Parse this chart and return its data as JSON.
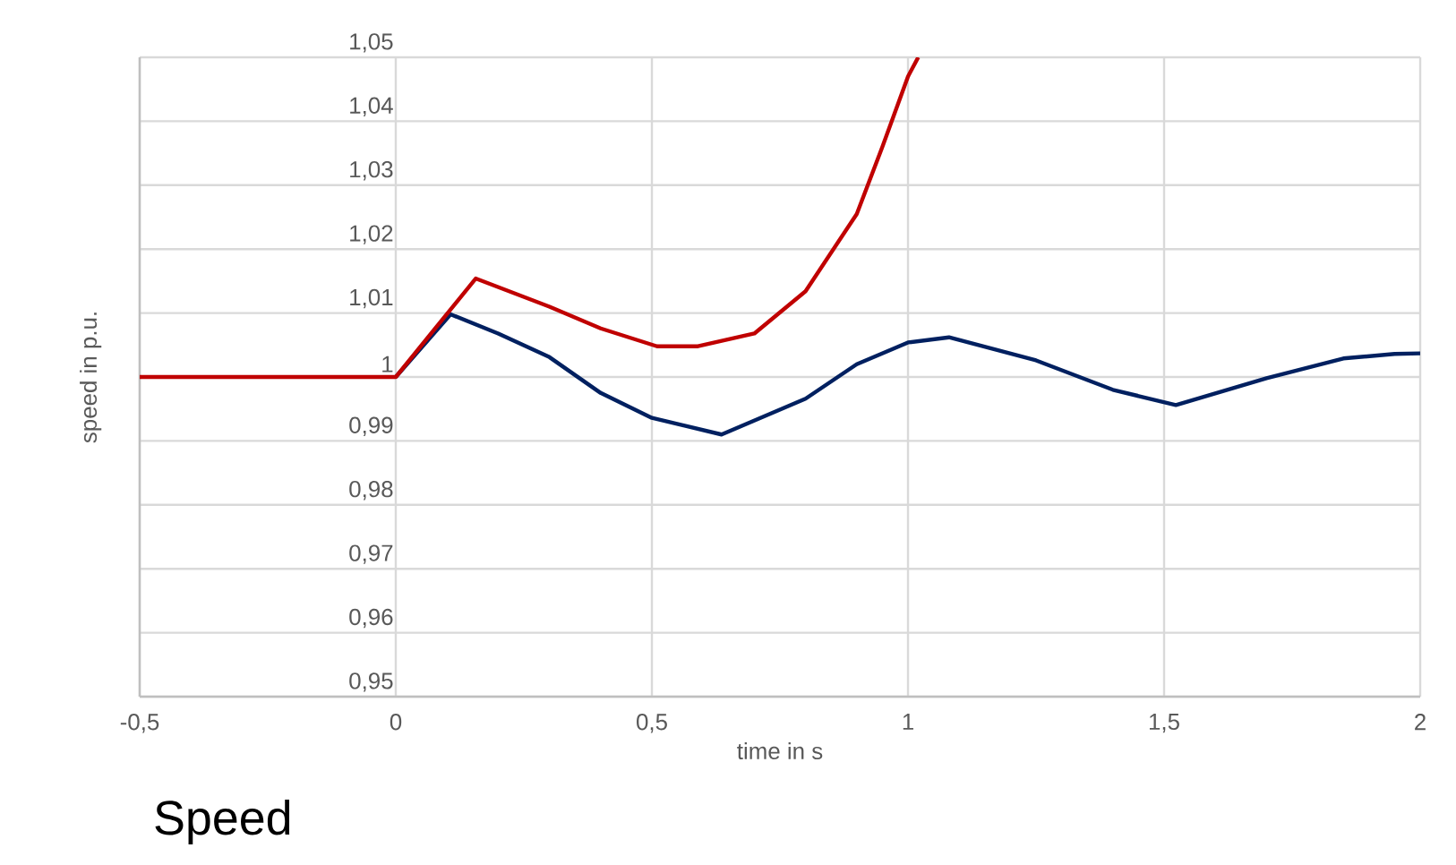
{
  "chart_data": {
    "type": "line",
    "xlabel": "time in s",
    "ylabel": "speed in p.u.",
    "annotations": [
      "Speed"
    ],
    "xlim": [
      -0.5,
      2
    ],
    "ylim": [
      0.95,
      1.05
    ],
    "xticks": [
      {
        "value": -0.5,
        "label": "-0,5"
      },
      0,
      {
        "value": 0.5,
        "label": "0,5"
      },
      1,
      {
        "value": 1.5,
        "label": "1,5"
      },
      2
    ],
    "yticks": [
      {
        "value": 0.95,
        "label": "0,95"
      },
      {
        "value": 0.96,
        "label": "0,96"
      },
      {
        "value": 0.97,
        "label": "0,97"
      },
      {
        "value": 0.98,
        "label": "0,98"
      },
      {
        "value": 0.99,
        "label": "0,99"
      },
      1,
      {
        "value": 1.01,
        "label": "1,01"
      },
      {
        "value": 1.02,
        "label": "1,02"
      },
      {
        "value": 1.03,
        "label": "1,03"
      },
      {
        "value": 1.04,
        "label": "1,04"
      },
      {
        "value": 1.05,
        "label": "1,05"
      }
    ],
    "grid": true,
    "marker": "none",
    "line_style": "solid",
    "series": [
      {
        "color": "#002060",
        "x": [
          0,
          0.107,
          0.2,
          0.3,
          0.4,
          0.5,
          0.636,
          0.8,
          0.9,
          1.0,
          1.08,
          1.25,
          1.4,
          1.523,
          1.7,
          1.85,
          1.95,
          2.0
        ],
        "values": [
          1,
          1.0098,
          1.0068,
          1.0031,
          0.9975,
          0.9936,
          0.991,
          0.9966,
          1.002,
          1.0054,
          1.0062,
          1.0026,
          0.998,
          0.9956,
          0.9998,
          1.0029,
          1.0036,
          1.0037
        ]
      },
      {
        "color": "#c00000",
        "x": [
          -0.5,
          0,
          0.156,
          0.3,
          0.4,
          0.51,
          0.59,
          0.7,
          0.8,
          0.9,
          0.95,
          1.0,
          1.02
        ],
        "values": [
          1,
          1,
          1.0154,
          1.011,
          1.0076,
          1.0048,
          1.0048,
          1.0068,
          1.0134,
          1.0255,
          1.036,
          1.047,
          1.05
        ]
      }
    ]
  }
}
